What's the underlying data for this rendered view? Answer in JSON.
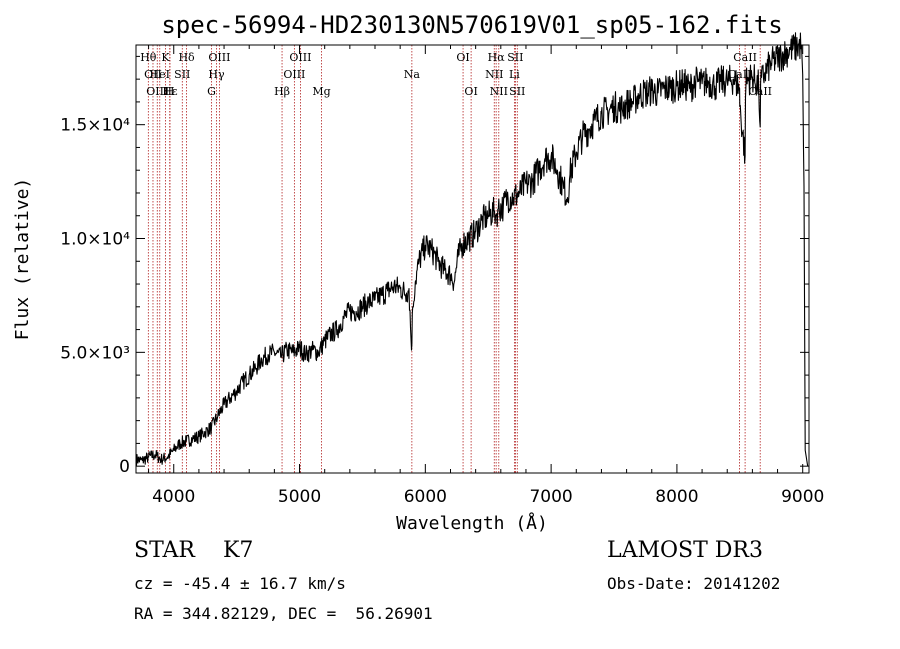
{
  "chart_data": {
    "type": "line",
    "title": "spec-56994-HD230130N570619V01_sp05-162.fits",
    "xlabel": "Wavelength (Å)",
    "ylabel": "Flux (relative)",
    "xlim": [
      3700,
      9050
    ],
    "ylim": [
      -300,
      18500
    ],
    "x_ticks": [
      4000,
      5000,
      6000,
      7000,
      8000,
      9000
    ],
    "x_tick_labels": [
      "4000",
      "5000",
      "6000",
      "7000",
      "8000",
      "9000"
    ],
    "y_ticks": [
      0,
      5000,
      10000,
      15000
    ],
    "y_tick_labels": [
      "0",
      "5.0×10³",
      "1.0×10⁴",
      "1.5×10⁴"
    ],
    "line_color": "#000000",
    "marker_color": "#b22222",
    "series": [
      {
        "name": "spectrum",
        "x": [
          3700,
          3750,
          3800,
          3850,
          3900,
          3950,
          4000,
          4050,
          4100,
          4150,
          4200,
          4250,
          4300,
          4350,
          4400,
          4450,
          4500,
          4550,
          4600,
          4650,
          4700,
          4750,
          4800,
          4850,
          4900,
          4950,
          5000,
          5050,
          5100,
          5150,
          5200,
          5250,
          5300,
          5350,
          5400,
          5450,
          5500,
          5550,
          5600,
          5650,
          5700,
          5750,
          5800,
          5850,
          5870,
          5890,
          5900,
          5920,
          5950,
          6000,
          6050,
          6100,
          6150,
          6200,
          6230,
          6260,
          6300,
          6350,
          6400,
          6450,
          6500,
          6550,
          6563,
          6580,
          6620,
          6650,
          6700,
          6750,
          6800,
          6850,
          6900,
          6950,
          7000,
          7050,
          7100,
          7130,
          7150,
          7200,
          7250,
          7300,
          7350,
          7400,
          7450,
          7500,
          7550,
          7600,
          7650,
          7700,
          7750,
          7800,
          7850,
          7900,
          7950,
          8000,
          8050,
          8100,
          8150,
          8200,
          8250,
          8300,
          8350,
          8400,
          8450,
          8498,
          8500,
          8542,
          8545,
          8550,
          8600,
          8650,
          8662,
          8665,
          8700,
          8750,
          8800,
          8850,
          8900,
          8950,
          8990,
          9000,
          9010,
          9020,
          9040
        ],
        "y": [
          300,
          250,
          400,
          500,
          300,
          400,
          700,
          1000,
          1100,
          1200,
          1300,
          1500,
          1700,
          2200,
          2700,
          3000,
          3300,
          3700,
          4000,
          4300,
          4700,
          4900,
          5000,
          4800,
          5100,
          5000,
          5200,
          4900,
          5100,
          5000,
          5500,
          5800,
          6000,
          6500,
          6800,
          6800,
          7000,
          7200,
          7300,
          7500,
          7700,
          7900,
          7800,
          7600,
          7800,
          5100,
          7000,
          8100,
          9000,
          9700,
          9500,
          9000,
          8600,
          8400,
          8100,
          9200,
          9800,
          10000,
          10300,
          10800,
          11000,
          11200,
          11000,
          11300,
          11400,
          11800,
          11800,
          12000,
          12400,
          12500,
          13000,
          13500,
          13600,
          13000,
          12200,
          11800,
          12800,
          13800,
          14500,
          14800,
          15200,
          15500,
          15600,
          15800,
          15700,
          15900,
          16000,
          16300,
          16400,
          16500,
          16400,
          16600,
          16600,
          16700,
          16800,
          16600,
          16900,
          16800,
          16900,
          16700,
          16900,
          16900,
          17000,
          16600,
          15800,
          13600,
          16200,
          16900,
          17100,
          16700,
          14900,
          16800,
          17300,
          17700,
          17900,
          18100,
          18300,
          18400,
          18500,
          17200,
          12300,
          700,
          0
        ]
      }
    ],
    "lines": [
      {
        "wl": 3798,
        "label": "Hθ",
        "row": 0
      },
      {
        "wl": 3835,
        "label": "OII",
        "row": 1
      },
      {
        "wl": 3869,
        "label": "OIII",
        "row": 2
      },
      {
        "wl": 3889,
        "label": "HeI",
        "row": 1
      },
      {
        "wl": 3934,
        "label": "K",
        "row": 0
      },
      {
        "wl": 3970,
        "label": "Hε",
        "row": 2
      },
      {
        "wl": 3968,
        "label": "H",
        "row": 2
      },
      {
        "wl": 4068,
        "label": "SII",
        "row": 1
      },
      {
        "wl": 4102,
        "label": "Hδ",
        "row": 0
      },
      {
        "wl": 4300,
        "label": "G",
        "row": 2
      },
      {
        "wl": 4340,
        "label": "Hγ",
        "row": 1
      },
      {
        "wl": 4363,
        "label": "OIII",
        "row": 0
      },
      {
        "wl": 4861,
        "label": "Hβ",
        "row": 2
      },
      {
        "wl": 4959,
        "label": "OIII",
        "row": 1
      },
      {
        "wl": 5007,
        "label": "OIII",
        "row": 0
      },
      {
        "wl": 5175,
        "label": "Mg",
        "row": 2
      },
      {
        "wl": 5893,
        "label": "Na",
        "row": 1
      },
      {
        "wl": 6300,
        "label": "OI",
        "row": 0
      },
      {
        "wl": 6364,
        "label": "OI",
        "row": 2
      },
      {
        "wl": 6548,
        "label": "NII",
        "row": 1
      },
      {
        "wl": 6563,
        "label": "Hα",
        "row": 0
      },
      {
        "wl": 6584,
        "label": "NII",
        "row": 2
      },
      {
        "wl": 6708,
        "label": "Li",
        "row": 1
      },
      {
        "wl": 6716,
        "label": "SII",
        "row": 0
      },
      {
        "wl": 6731,
        "label": "SII",
        "row": 2
      },
      {
        "wl": 8498,
        "label": "CaII",
        "row": 1
      },
      {
        "wl": 8542,
        "label": "CaII",
        "row": 0
      },
      {
        "wl": 8662,
        "label": "CaII",
        "row": 2
      }
    ]
  },
  "info": {
    "class_line": "STAR    K7",
    "cz_line": "cz = -45.4 ± 16.7 km/s",
    "radec_line": "RA = 344.82129, DEC =  56.26901",
    "survey": "LAMOST DR3",
    "obs_date": "Obs-Date: 20141202"
  }
}
